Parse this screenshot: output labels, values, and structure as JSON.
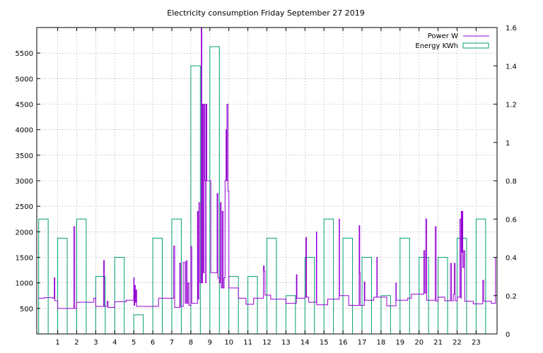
{
  "chart_data": {
    "type": "line",
    "title": "Electricity consumption Friday September 27 2019",
    "x_axis": {
      "range": [
        -0.1,
        24.1
      ],
      "ticks": [
        1,
        2,
        3,
        4,
        5,
        6,
        7,
        8,
        9,
        10,
        11,
        12,
        13,
        14,
        15,
        16,
        17,
        18,
        19,
        20,
        21,
        22,
        23
      ],
      "grid": true
    },
    "y_axis_left": {
      "range": [
        0,
        6000
      ],
      "ticks": [
        500,
        1000,
        1500,
        2000,
        2500,
        3000,
        3500,
        4000,
        4500,
        5000,
        5500
      ],
      "grid": true
    },
    "y_axis_right": {
      "range": [
        0,
        1.6
      ],
      "ticks": [
        "0",
        "0.2",
        "0.4",
        "0.6",
        "0.8",
        "1",
        "1.2",
        "1.4",
        "1.6"
      ]
    },
    "legend": {
      "placement": "top-right"
    },
    "series": [
      {
        "name": "Power W",
        "type": "line",
        "axis": "left",
        "color": "#9400d3",
        "points": [
          [
            0,
            700
          ],
          [
            0.3,
            710
          ],
          [
            0.75,
            700
          ],
          [
            0.82,
            1100
          ],
          [
            0.85,
            650
          ],
          [
            1.0,
            500
          ],
          [
            1.8,
            500
          ],
          [
            1.85,
            2100
          ],
          [
            1.9,
            500
          ],
          [
            2.0,
            620
          ],
          [
            2.8,
            620
          ],
          [
            2.9,
            700
          ],
          [
            3.0,
            540
          ],
          [
            3.4,
            540
          ],
          [
            3.42,
            1440
          ],
          [
            3.45,
            540
          ],
          [
            3.6,
            640
          ],
          [
            3.65,
            520
          ],
          [
            3.9,
            520
          ],
          [
            4.0,
            630
          ],
          [
            4.5,
            630
          ],
          [
            4.6,
            660
          ],
          [
            4.95,
            660
          ],
          [
            5.0,
            1100
          ],
          [
            5.02,
            560
          ],
          [
            5.05,
            950
          ],
          [
            5.08,
            620
          ],
          [
            5.12,
            860
          ],
          [
            5.15,
            540
          ],
          [
            5.5,
            540
          ],
          [
            6.2,
            540
          ],
          [
            6.3,
            700
          ],
          [
            7.05,
            700
          ],
          [
            7.1,
            1720
          ],
          [
            7.15,
            520
          ],
          [
            7.4,
            520
          ],
          [
            7.42,
            1390
          ],
          [
            7.45,
            540
          ],
          [
            7.55,
            540
          ],
          [
            7.6,
            1400
          ],
          [
            7.7,
            600
          ],
          [
            7.75,
            1430
          ],
          [
            7.8,
            600
          ],
          [
            7.85,
            1000
          ],
          [
            7.9,
            560
          ],
          [
            8.0,
            1710
          ],
          [
            8.05,
            600
          ],
          [
            8.3,
            600
          ],
          [
            8.35,
            2400
          ],
          [
            8.38,
            680
          ],
          [
            8.42,
            2570
          ],
          [
            8.48,
            1000
          ],
          [
            8.55,
            5990
          ],
          [
            8.58,
            1000
          ],
          [
            8.62,
            4500
          ],
          [
            8.65,
            1200
          ],
          [
            8.7,
            4500
          ],
          [
            8.74,
            3000
          ],
          [
            8.78,
            1000
          ],
          [
            8.8,
            4500
          ],
          [
            8.84,
            3000
          ],
          [
            9.0,
            3000
          ],
          [
            9.05,
            1200
          ],
          [
            9.35,
            1200
          ],
          [
            9.38,
            2750
          ],
          [
            9.42,
            1100
          ],
          [
            9.5,
            1000
          ],
          [
            9.55,
            2570
          ],
          [
            9.6,
            900
          ],
          [
            9.65,
            2400
          ],
          [
            9.7,
            900
          ],
          [
            9.75,
            1100
          ],
          [
            9.8,
            3000
          ],
          [
            9.85,
            4000
          ],
          [
            9.88,
            3000
          ],
          [
            9.9,
            4500
          ],
          [
            9.95,
            2800
          ],
          [
            10.0,
            900
          ],
          [
            10.4,
            900
          ],
          [
            10.5,
            700
          ],
          [
            10.8,
            700
          ],
          [
            10.9,
            580
          ],
          [
            11.2,
            580
          ],
          [
            11.3,
            700
          ],
          [
            11.8,
            700
          ],
          [
            11.82,
            1330
          ],
          [
            11.86,
            1230
          ],
          [
            11.9,
            760
          ],
          [
            12.1,
            760
          ],
          [
            12.2,
            680
          ],
          [
            12.9,
            680
          ],
          [
            13.0,
            600
          ],
          [
            13.5,
            600
          ],
          [
            13.55,
            1160
          ],
          [
            13.58,
            700
          ],
          [
            14.0,
            720
          ],
          [
            14.05,
            1890
          ],
          [
            14.08,
            720
          ],
          [
            14.2,
            620
          ],
          [
            14.5,
            620
          ],
          [
            14.6,
            2000
          ],
          [
            14.62,
            570
          ],
          [
            15.0,
            570
          ],
          [
            15.2,
            680
          ],
          [
            15.5,
            680
          ],
          [
            15.8,
            2250
          ],
          [
            15.82,
            750
          ],
          [
            16.2,
            750
          ],
          [
            16.3,
            560
          ],
          [
            16.8,
            560
          ],
          [
            16.85,
            2120
          ],
          [
            16.88,
            1200
          ],
          [
            16.9,
            560
          ],
          [
            17.1,
            560
          ],
          [
            17.12,
            1020
          ],
          [
            17.15,
            660
          ],
          [
            17.6,
            660
          ],
          [
            17.62,
            720
          ],
          [
            17.75,
            720
          ],
          [
            17.78,
            1500
          ],
          [
            17.8,
            720
          ],
          [
            18.2,
            720
          ],
          [
            18.3,
            550
          ],
          [
            18.75,
            550
          ],
          [
            18.78,
            1000
          ],
          [
            18.8,
            660
          ],
          [
            19.3,
            660
          ],
          [
            19.4,
            700
          ],
          [
            19.6,
            780
          ],
          [
            20.2,
            780
          ],
          [
            20.25,
            1630
          ],
          [
            20.3,
            800
          ],
          [
            20.35,
            2250
          ],
          [
            20.4,
            660
          ],
          [
            20.8,
            660
          ],
          [
            20.85,
            2100
          ],
          [
            20.9,
            640
          ],
          [
            21.0,
            720
          ],
          [
            21.3,
            720
          ],
          [
            21.35,
            650
          ],
          [
            21.6,
            650
          ],
          [
            21.65,
            1380
          ],
          [
            21.7,
            650
          ],
          [
            21.8,
            780
          ],
          [
            21.85,
            1380
          ],
          [
            21.9,
            650
          ],
          [
            22.0,
            720
          ],
          [
            22.1,
            720
          ],
          [
            22.15,
            2250
          ],
          [
            22.2,
            700
          ],
          [
            22.22,
            2400
          ],
          [
            22.25,
            1600
          ],
          [
            22.28,
            2400
          ],
          [
            22.3,
            1300
          ],
          [
            22.35,
            1630
          ],
          [
            22.4,
            640
          ],
          [
            22.8,
            640
          ],
          [
            22.85,
            590
          ],
          [
            23.3,
            590
          ],
          [
            23.35,
            1050
          ],
          [
            23.4,
            640
          ],
          [
            23.7,
            640
          ],
          [
            23.8,
            600
          ],
          [
            24.0,
            600
          ],
          [
            24.02,
            1500
          ]
        ]
      },
      {
        "name": "Energy KWh",
        "type": "bar",
        "axis": "right",
        "color": "#009e73",
        "hours": [
          0,
          1,
          2,
          3,
          4,
          5,
          6,
          7,
          8,
          9,
          10,
          11,
          12,
          13,
          14,
          15,
          16,
          17,
          18,
          19,
          20,
          21,
          22,
          23
        ],
        "values": [
          0.6,
          0.5,
          0.6,
          0.3,
          0.4,
          0.1,
          0.5,
          0.6,
          1.4,
          1.5,
          0.3,
          0.3,
          0.5,
          0.2,
          0.4,
          0.6,
          0.5,
          0.4,
          0.2,
          0.5,
          0.4,
          0.4,
          0.5,
          0.6
        ]
      }
    ]
  }
}
